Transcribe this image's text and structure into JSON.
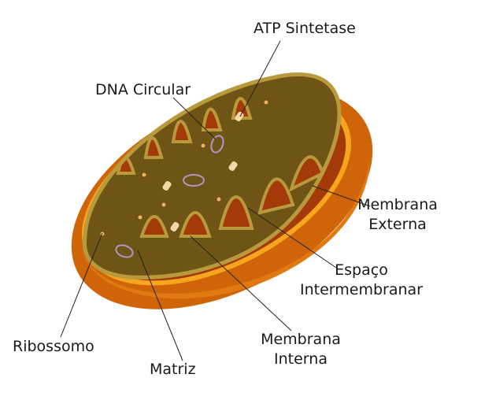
{
  "labels": {
    "atp_synthase": "ATP Sintetase",
    "dna_circular": "DNA Circular",
    "outer_membrane": [
      "Membrana",
      "Externa"
    ],
    "intermembrane_space": [
      "Espaço",
      "Intermembranar"
    ],
    "inner_membrane": [
      "Membrana",
      "Interna"
    ],
    "ribosome": "Ribossomo",
    "matrix": "Matriz"
  },
  "colors": {
    "outer_shell": "#d6700c",
    "outer_rim": "#f7a51c",
    "intermembrane": "#a33a07",
    "matrix": "#6e5415",
    "inner_membrane": "#b89a3c",
    "atp_synthase": "#f2d9a8",
    "dna": "#b892c4",
    "ribosome": "#e8b26a",
    "leader_line": "#222222"
  }
}
